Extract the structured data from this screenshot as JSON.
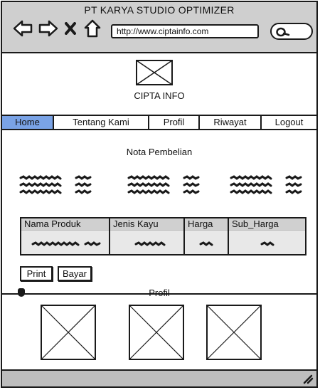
{
  "window": {
    "title": "PT KARYA STUDIO OPTIMIZER"
  },
  "browser": {
    "url": "http://www.ciptainfo.com",
    "icons": [
      "back-arrow-icon",
      "forward-arrow-icon",
      "close-icon",
      "home-icon",
      "search-icon"
    ]
  },
  "brand": {
    "name": "CIPTA INFO",
    "logo": "image-placeholder-icon"
  },
  "nav": {
    "items": [
      {
        "label": "Home",
        "active": true
      },
      {
        "label": "Tentang Kami",
        "active": false
      },
      {
        "label": "Profil",
        "active": false
      },
      {
        "label": "Riwayat",
        "active": false
      },
      {
        "label": "Logout",
        "active": false
      }
    ]
  },
  "page": {
    "heading": "Nota Pembelian"
  },
  "table": {
    "headers": [
      "Nama Produk",
      "Jenis Kayu",
      "Harga",
      "Sub_Harga"
    ]
  },
  "buttons": {
    "print": "Print",
    "bayar": "Bayar"
  },
  "section": {
    "divider_label": "Profil"
  },
  "colors": {
    "active_nav": "#7aa3e6",
    "bar": "#cfcfcf",
    "stroke": "#1a1a1a"
  }
}
